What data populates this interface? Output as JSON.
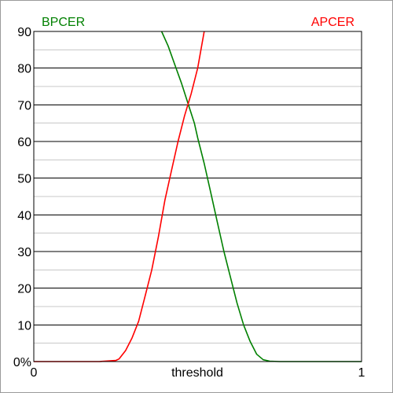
{
  "chart_data": {
    "type": "line",
    "title": "",
    "xlabel": "threshold",
    "ylabel": "",
    "xlim": [
      0,
      1
    ],
    "ylim": [
      0,
      90
    ],
    "x_ticks": [
      {
        "value": 0,
        "label": "0"
      },
      {
        "value": 1,
        "label": "1"
      }
    ],
    "y_ticks": [
      {
        "value": 0,
        "label": "0%"
      },
      {
        "value": 10,
        "label": "10"
      },
      {
        "value": 20,
        "label": "20"
      },
      {
        "value": 30,
        "label": "30"
      },
      {
        "value": 40,
        "label": "40"
      },
      {
        "value": 50,
        "label": "50"
      },
      {
        "value": 60,
        "label": "60"
      },
      {
        "value": 70,
        "label": "70"
      },
      {
        "value": 80,
        "label": "80"
      },
      {
        "value": 90,
        "label": "90"
      }
    ],
    "grid": {
      "major_step": 10,
      "minor_step": 5,
      "major_color": "#000000",
      "minor_color": "#c8c8c8"
    },
    "series": [
      {
        "name": "BPCER",
        "color": "#008000",
        "label_position": "top-left",
        "x": [
          0.39,
          0.41,
          0.43,
          0.45,
          0.47,
          0.49,
          0.5,
          0.52,
          0.54,
          0.56,
          0.58,
          0.6,
          0.62,
          0.64,
          0.66,
          0.68,
          0.7,
          0.72,
          0.75,
          0.8,
          1.0
        ],
        "y": [
          90,
          86,
          81,
          76,
          70.5,
          65,
          61,
          54,
          46,
          38,
          30,
          23,
          16,
          10,
          5.5,
          2,
          0.5,
          0.1,
          0,
          0,
          0
        ]
      },
      {
        "name": "APCER",
        "color": "#ff0000",
        "label_position": "top-right",
        "x": [
          0,
          0.2,
          0.25,
          0.26,
          0.28,
          0.3,
          0.32,
          0.34,
          0.36,
          0.38,
          0.4,
          0.42,
          0.44,
          0.46,
          0.48,
          0.5,
          0.52
        ],
        "y": [
          0,
          0,
          0.3,
          0.7,
          3,
          6.5,
          11,
          18,
          25,
          34,
          44,
          52,
          60,
          67,
          73,
          80,
          90
        ]
      }
    ]
  }
}
